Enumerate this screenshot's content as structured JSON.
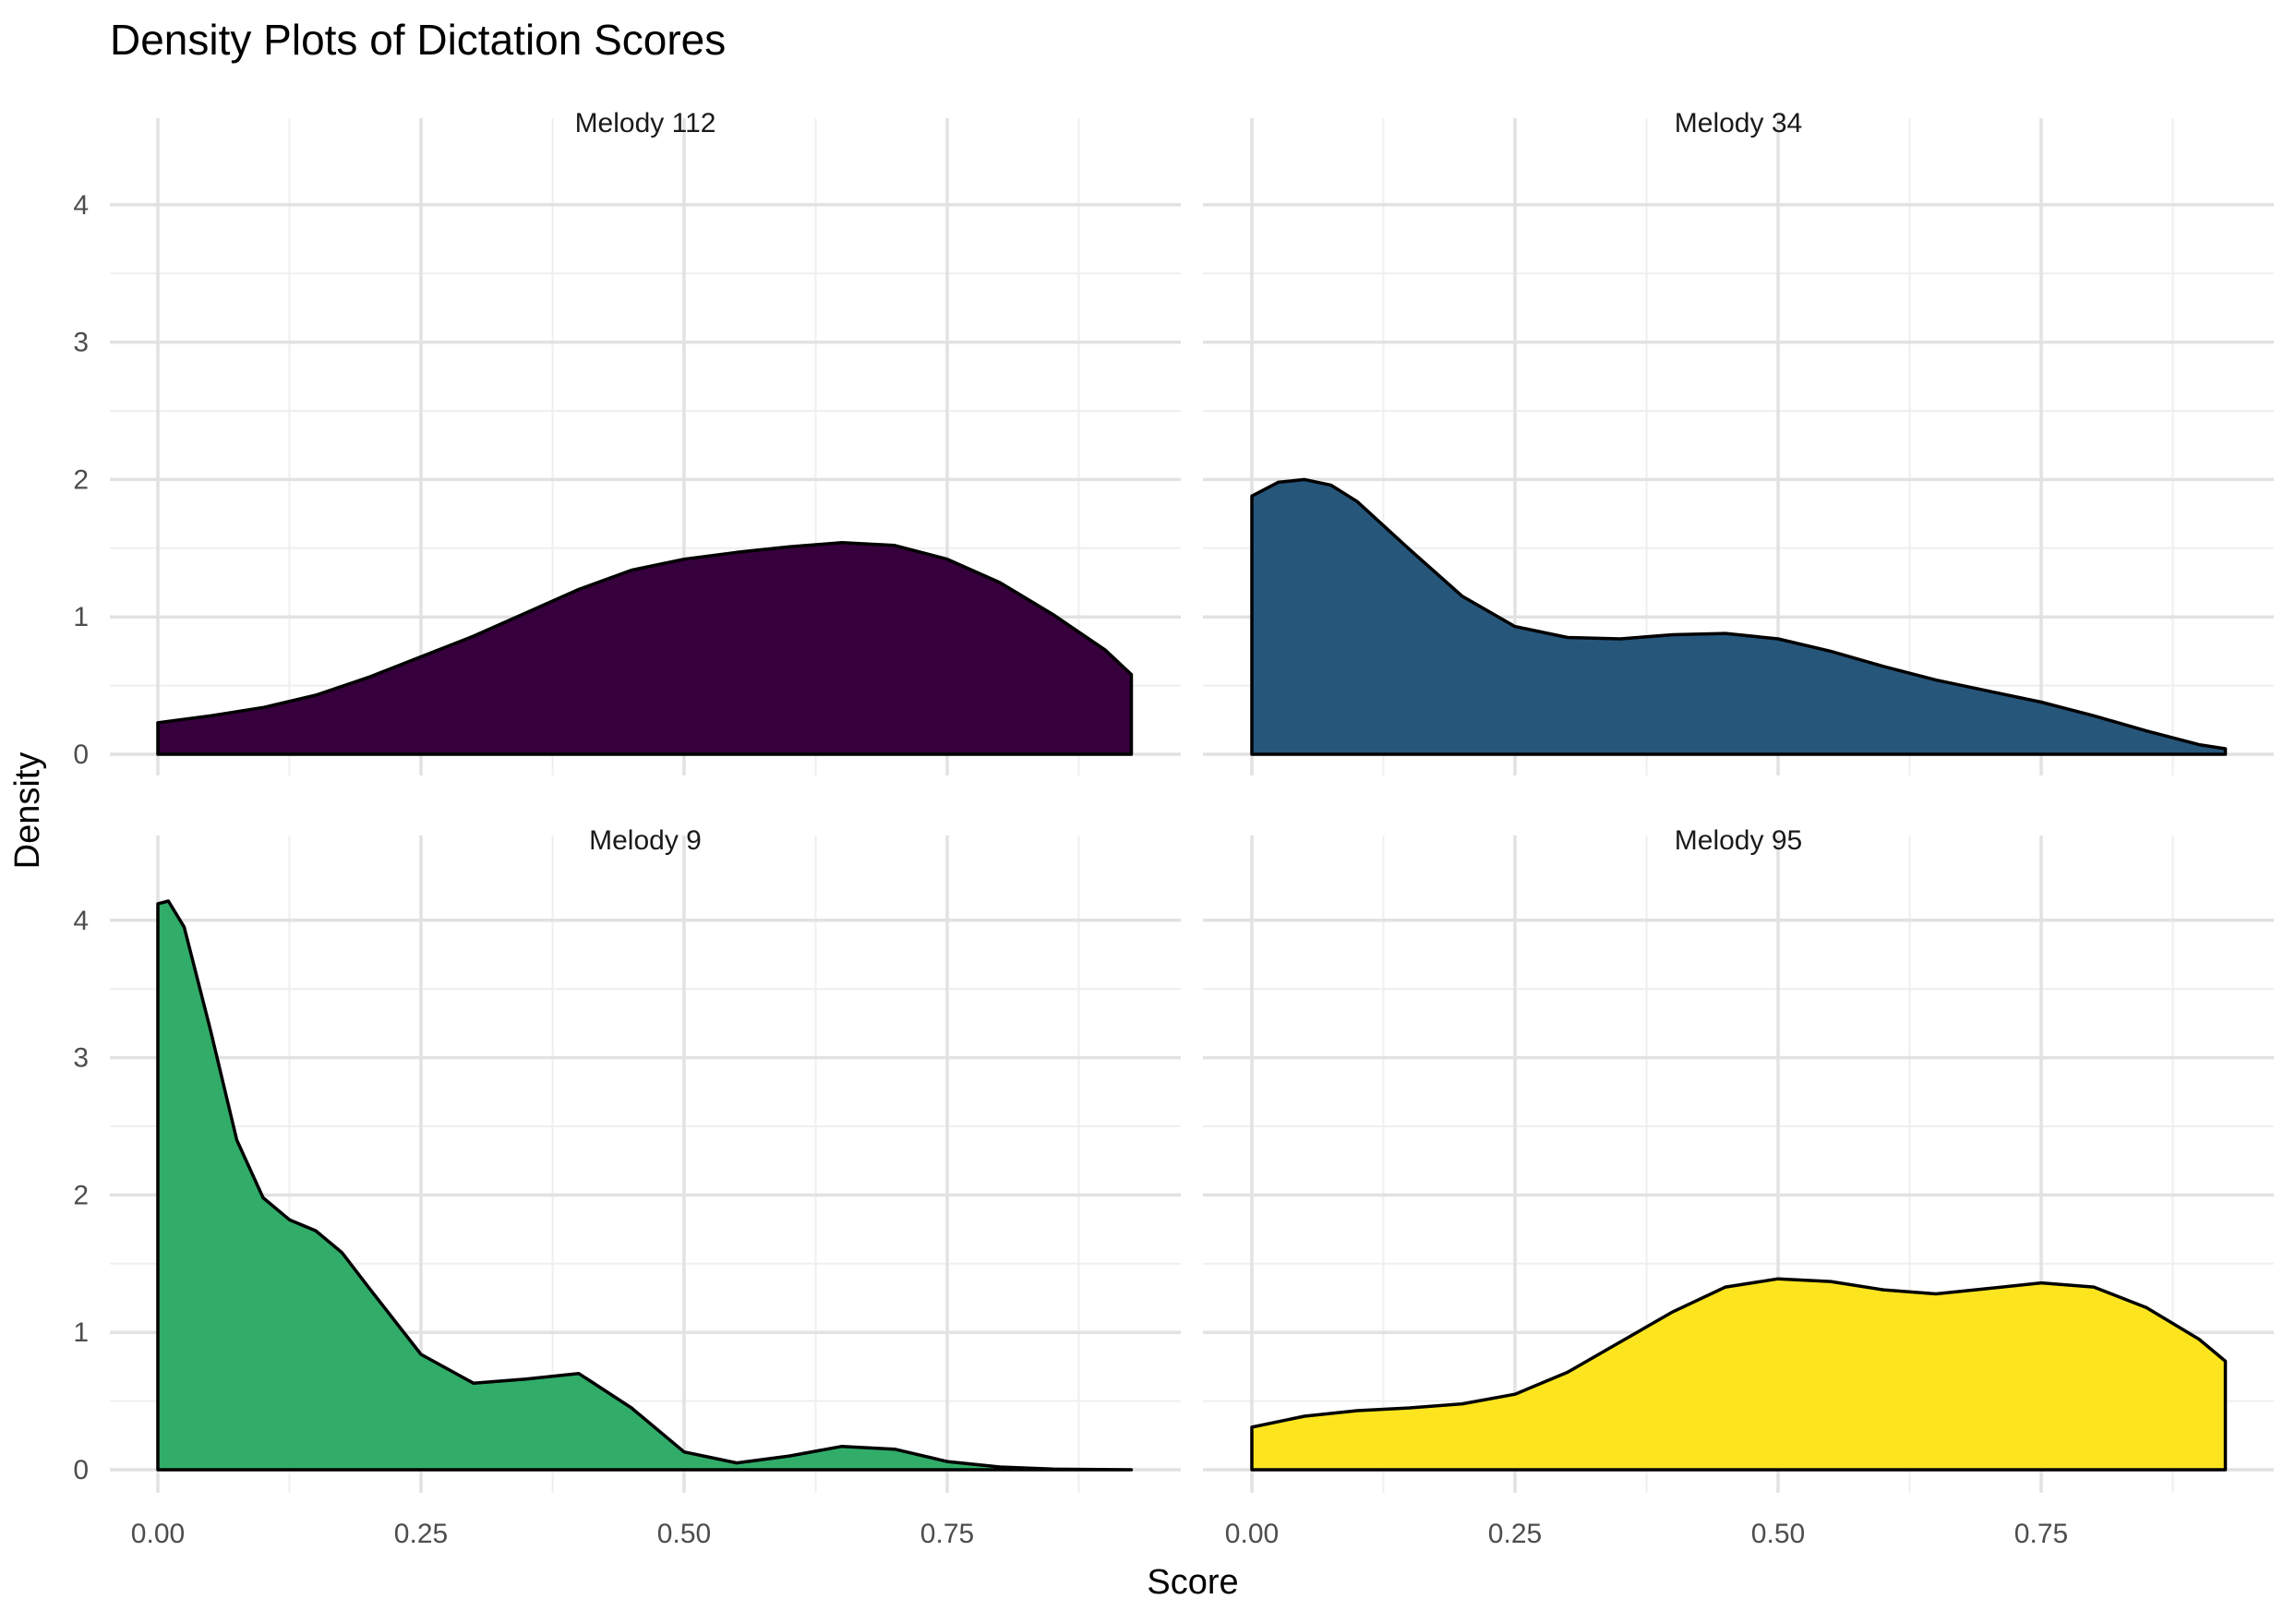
{
  "chart_data": {
    "type": "area",
    "title": "Density Plots of Dictation Scores",
    "xlabel": "Score",
    "ylabel": "Density",
    "xlim": [
      0,
      0.925
    ],
    "ylim": [
      0,
      4.3
    ],
    "x_ticks": [
      "0.00",
      "0.25",
      "0.50",
      "0.75"
    ],
    "y_ticks": [
      "0",
      "1",
      "2",
      "3",
      "4"
    ],
    "grid": true,
    "legend": "none",
    "panels": [
      {
        "name": "Melody 112",
        "color": "#35003c",
        "x": [
          0,
          0.05,
          0.1,
          0.15,
          0.2,
          0.25,
          0.3,
          0.35,
          0.4,
          0.45,
          0.5,
          0.55,
          0.6,
          0.65,
          0.7,
          0.75,
          0.8,
          0.85,
          0.9,
          0.925
        ],
        "y": [
          0.23,
          0.28,
          0.34,
          0.43,
          0.56,
          0.71,
          0.86,
          1.03,
          1.2,
          1.34,
          1.42,
          1.47,
          1.51,
          1.54,
          1.52,
          1.42,
          1.25,
          1.02,
          0.76,
          0.58
        ]
      },
      {
        "name": "Melody 34",
        "color": "#27567b",
        "x": [
          0,
          0.025,
          0.05,
          0.075,
          0.1,
          0.15,
          0.2,
          0.25,
          0.3,
          0.35,
          0.4,
          0.45,
          0.5,
          0.55,
          0.6,
          0.65,
          0.7,
          0.75,
          0.8,
          0.85,
          0.9,
          0.925
        ],
        "y": [
          1.88,
          1.98,
          2.0,
          1.96,
          1.84,
          1.49,
          1.15,
          0.93,
          0.85,
          0.84,
          0.87,
          0.88,
          0.84,
          0.75,
          0.64,
          0.54,
          0.46,
          0.38,
          0.28,
          0.17,
          0.07,
          0.04
        ]
      },
      {
        "name": "Melody 9",
        "color": "#31ad69",
        "x": [
          0,
          0.01,
          0.025,
          0.05,
          0.075,
          0.1,
          0.125,
          0.15,
          0.175,
          0.2,
          0.25,
          0.3,
          0.35,
          0.4,
          0.45,
          0.5,
          0.55,
          0.6,
          0.65,
          0.7,
          0.75,
          0.8,
          0.85,
          0.925
        ],
        "y": [
          4.12,
          4.14,
          3.95,
          3.2,
          2.4,
          1.98,
          1.82,
          1.74,
          1.58,
          1.33,
          0.84,
          0.63,
          0.66,
          0.7,
          0.45,
          0.13,
          0.05,
          0.1,
          0.17,
          0.15,
          0.06,
          0.02,
          0.005,
          0.0
        ]
      },
      {
        "name": "Melody 95",
        "color": "#fce51f",
        "x": [
          0,
          0.05,
          0.1,
          0.15,
          0.2,
          0.25,
          0.3,
          0.35,
          0.4,
          0.45,
          0.5,
          0.55,
          0.6,
          0.65,
          0.7,
          0.75,
          0.8,
          0.85,
          0.9,
          0.925
        ],
        "y": [
          0.31,
          0.39,
          0.43,
          0.45,
          0.48,
          0.55,
          0.71,
          0.93,
          1.15,
          1.33,
          1.39,
          1.37,
          1.31,
          1.28,
          1.32,
          1.36,
          1.33,
          1.18,
          0.95,
          0.79
        ]
      }
    ]
  }
}
